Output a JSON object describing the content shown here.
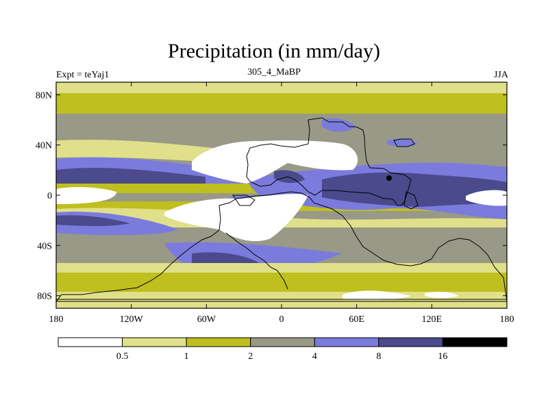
{
  "title": "Precipitation (in mm/day)",
  "left_subtitle": "Expt = teYaj1",
  "center_subtitle": "305_4_MaBP",
  "right_subtitle": "JJA",
  "y_ticks": [
    {
      "label": "80N",
      "lat": 80
    },
    {
      "label": "40N",
      "lat": 40
    },
    {
      "label": "0",
      "lat": 0
    },
    {
      "label": "40S",
      "lat": -40
    },
    {
      "label": "80S",
      "lat": -80
    }
  ],
  "x_ticks": [
    {
      "label": "180",
      "lon": -180
    },
    {
      "label": "120W",
      "lon": -120
    },
    {
      "label": "60W",
      "lon": -60
    },
    {
      "label": "0",
      "lon": 0
    },
    {
      "label": "60E",
      "lon": 60
    },
    {
      "label": "120E",
      "lon": 120
    },
    {
      "label": "180",
      "lon": 180
    }
  ],
  "colorbar": {
    "colors": [
      "#ffffff",
      "#e0e08a",
      "#bfbf1f",
      "#999987",
      "#7b7bdd",
      "#4a4a8c",
      "#000000"
    ],
    "labels": [
      "0.5",
      "1",
      "2",
      "4",
      "8",
      "16"
    ]
  },
  "colors": {
    "white": "#ffffff",
    "lightyellow": "#e0e08a",
    "olive": "#bfbf1f",
    "gray": "#999987",
    "lightblue": "#7b7bdd",
    "darkblue": "#4a4a8c"
  }
}
